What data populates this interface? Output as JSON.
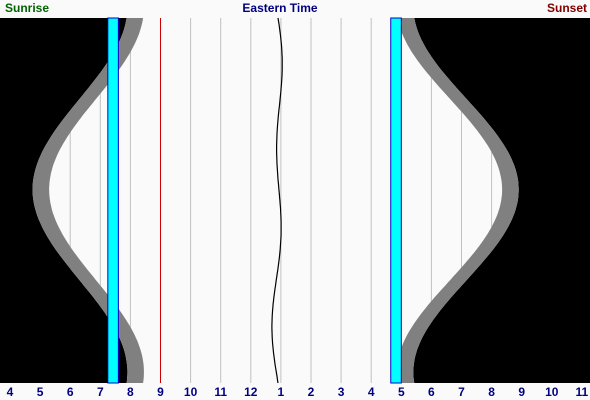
{
  "header": {
    "left_label": "Sunrise",
    "center_label": "Eastern Time",
    "right_label": "Sunset"
  },
  "colors": {
    "sunrise_label": "#006400",
    "center_label": "#000080",
    "sunset_label": "#800000",
    "night": "#000000",
    "day": "#fafafa",
    "twilight": "#808080",
    "dst_band": "#00ffff",
    "dst_edge": "#0000cc",
    "marker_line": "#cc0000",
    "noon_curve": "#000000",
    "hour_grid": "#c0c0c0",
    "tick_label": "#000080"
  },
  "chart_data": {
    "type": "area",
    "x_ticks": [
      "4",
      "5",
      "6",
      "7",
      "8",
      "9",
      "10",
      "11",
      "12",
      "1",
      "2",
      "3",
      "4",
      "5",
      "6",
      "7",
      "8",
      "9",
      "10",
      "11"
    ],
    "x_range_hours": [
      3.6,
      23.3
    ],
    "y_axis": "day of year (top = Jan 1, bottom = Dec 31), no labels shown",
    "sunrise_extremes_hours": {
      "earliest": 4.75,
      "latest": 7.9
    },
    "sunset_extremes_hours": {
      "earliest": 17.4,
      "latest": 20.9
    },
    "solar_noon_hours_range": [
      12.7,
      13.1
    ],
    "dst_bands_hours": [
      [
        7.25,
        7.6
      ],
      [
        16.65,
        17.0
      ]
    ],
    "marker_line_hour": 9.0,
    "grid": true
  }
}
